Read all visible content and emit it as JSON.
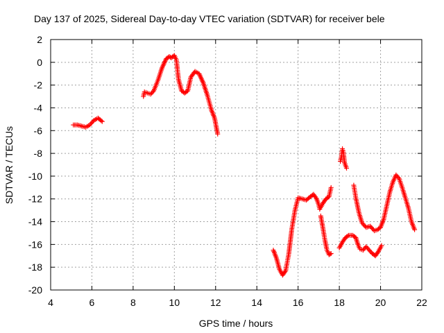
{
  "chart_data": {
    "type": "scatter",
    "title": "Day 137 of 2025, Sidereal Day-to-day VTEC variation (SDTVAR) for receiver bele",
    "xlabel": "GPS time / hours",
    "ylabel": "SDTVAR / TECUs",
    "xlim": [
      4,
      22
    ],
    "ylim": [
      -20,
      2
    ],
    "xticks": [
      4,
      6,
      8,
      10,
      12,
      14,
      16,
      18,
      20,
      22
    ],
    "yticks": [
      -20,
      -18,
      -16,
      -14,
      -12,
      -10,
      -8,
      -6,
      -4,
      -2,
      0,
      2
    ],
    "grid": true,
    "marker": "+",
    "color": "#ff0000",
    "series": [
      {
        "name": "segment-1",
        "points": [
          [
            5.1,
            -5.5
          ],
          [
            5.3,
            -5.5
          ],
          [
            5.5,
            -5.6
          ],
          [
            5.7,
            -5.7
          ],
          [
            5.9,
            -5.5
          ],
          [
            6.1,
            -5.1
          ],
          [
            6.3,
            -4.9
          ],
          [
            6.5,
            -5.2
          ]
        ]
      },
      {
        "name": "segment-2",
        "points": [
          [
            8.5,
            -3.0
          ],
          [
            8.55,
            -2.6
          ],
          [
            8.7,
            -2.7
          ],
          [
            8.85,
            -2.8
          ],
          [
            9.0,
            -2.5
          ],
          [
            9.2,
            -1.6
          ],
          [
            9.4,
            -0.5
          ],
          [
            9.6,
            0.3
          ],
          [
            9.75,
            0.5
          ],
          [
            9.85,
            0.4
          ],
          [
            10.0,
            0.6
          ],
          [
            10.1,
            0.2
          ],
          [
            10.2,
            -1.5
          ],
          [
            10.35,
            -2.5
          ],
          [
            10.5,
            -2.7
          ],
          [
            10.65,
            -2.5
          ],
          [
            10.8,
            -1.3
          ],
          [
            11.0,
            -0.8
          ],
          [
            11.2,
            -1.0
          ],
          [
            11.4,
            -1.8
          ],
          [
            11.6,
            -2.9
          ],
          [
            11.8,
            -4.2
          ],
          [
            11.95,
            -4.9
          ],
          [
            12.1,
            -6.3
          ]
        ]
      },
      {
        "name": "segment-3",
        "points": [
          [
            14.8,
            -16.5
          ],
          [
            14.95,
            -17.2
          ],
          [
            15.1,
            -18.2
          ],
          [
            15.25,
            -18.7
          ],
          [
            15.4,
            -18.3
          ],
          [
            15.55,
            -16.8
          ],
          [
            15.7,
            -14.6
          ],
          [
            15.85,
            -13.0
          ],
          [
            16.0,
            -11.9
          ],
          [
            16.2,
            -12.0
          ],
          [
            16.4,
            -12.1
          ],
          [
            16.6,
            -11.8
          ],
          [
            16.75,
            -11.6
          ],
          [
            16.9,
            -12.0
          ],
          [
            17.0,
            -12.5
          ],
          [
            17.05,
            -12.9
          ],
          [
            17.2,
            -12.4
          ],
          [
            17.35,
            -12.0
          ],
          [
            17.5,
            -11.8
          ],
          [
            17.6,
            -11.0
          ]
        ]
      },
      {
        "name": "segment-4",
        "points": [
          [
            17.1,
            -13.5
          ],
          [
            17.2,
            -14.5
          ],
          [
            17.3,
            -15.6
          ],
          [
            17.4,
            -16.5
          ],
          [
            17.5,
            -16.9
          ],
          [
            17.6,
            -16.8
          ]
        ]
      },
      {
        "name": "segment-5",
        "points": [
          [
            18.0,
            -16.3
          ],
          [
            18.15,
            -15.8
          ],
          [
            18.3,
            -15.4
          ],
          [
            18.45,
            -15.2
          ],
          [
            18.65,
            -15.2
          ],
          [
            18.8,
            -15.4
          ],
          [
            18.9,
            -16.0
          ],
          [
            19.0,
            -16.4
          ],
          [
            19.15,
            -16.5
          ],
          [
            19.3,
            -16.2
          ],
          [
            19.45,
            -16.5
          ],
          [
            19.6,
            -16.8
          ],
          [
            19.75,
            -17.0
          ],
          [
            19.9,
            -16.6
          ],
          [
            20.05,
            -16.1
          ]
        ]
      },
      {
        "name": "segment-6",
        "points": [
          [
            18.05,
            -8.7
          ],
          [
            18.1,
            -8.3
          ],
          [
            18.15,
            -7.6
          ],
          [
            18.2,
            -7.9
          ],
          [
            18.25,
            -8.8
          ],
          [
            18.35,
            -9.3
          ]
        ]
      },
      {
        "name": "segment-7",
        "points": [
          [
            18.7,
            -10.8
          ],
          [
            18.8,
            -11.9
          ],
          [
            18.95,
            -13.2
          ],
          [
            19.1,
            -14.1
          ],
          [
            19.3,
            -14.5
          ],
          [
            19.5,
            -14.4
          ],
          [
            19.7,
            -14.8
          ],
          [
            19.85,
            -14.7
          ],
          [
            20.0,
            -14.5
          ],
          [
            20.15,
            -13.8
          ],
          [
            20.3,
            -12.6
          ],
          [
            20.45,
            -11.4
          ],
          [
            20.6,
            -10.5
          ],
          [
            20.75,
            -9.9
          ],
          [
            20.9,
            -10.2
          ],
          [
            21.05,
            -11.0
          ],
          [
            21.2,
            -11.9
          ],
          [
            21.35,
            -12.8
          ],
          [
            21.5,
            -14.0
          ],
          [
            21.65,
            -14.7
          ]
        ]
      }
    ]
  }
}
